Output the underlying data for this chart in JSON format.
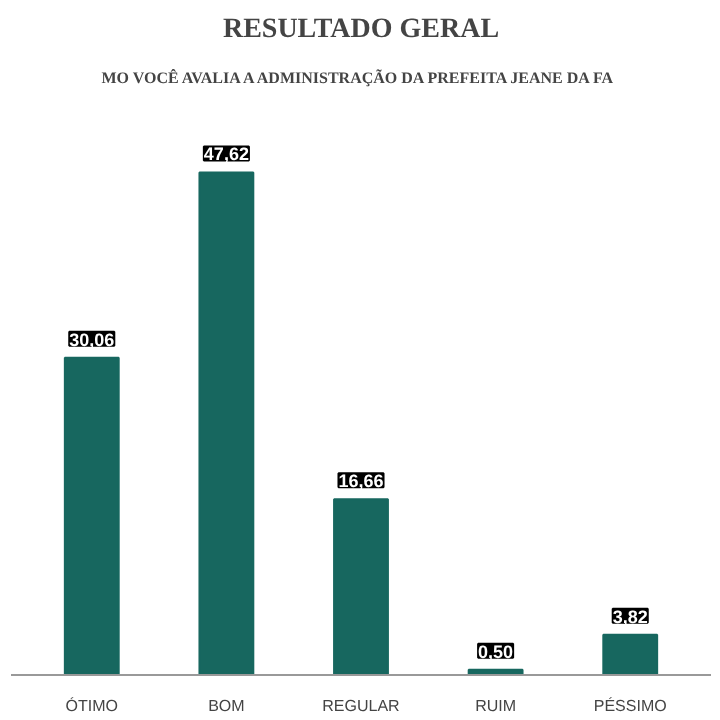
{
  "chart_data": {
    "type": "bar",
    "title": "MO VOCÊ AVALIA A ADMINISTRAÇÃO DA PREFEITA JEANE DA FA",
    "subtitle": "RESULTADO GERAL",
    "categories": [
      "ÓTIMO",
      "BOM",
      "REGULAR",
      "RUIM",
      "PÉSSIMO"
    ],
    "values": [
      30.06,
      47.62,
      16.66,
      0.5,
      3.82
    ],
    "value_labels": [
      "30,06",
      "47,62",
      "16,66",
      "0,50",
      "3,82"
    ],
    "color": "#17675f",
    "grid": false
  }
}
